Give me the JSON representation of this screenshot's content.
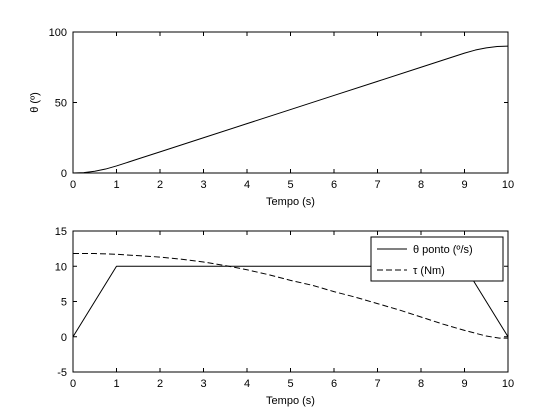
{
  "chart_data": [
    {
      "type": "line",
      "title": "",
      "xlabel": "Tempo (s)",
      "ylabel": "θ (º)",
      "xlim": [
        0,
        10
      ],
      "ylim": [
        0,
        100
      ],
      "xticks": [
        0,
        1,
        2,
        3,
        4,
        5,
        6,
        7,
        8,
        9,
        10
      ],
      "yticks": [
        0,
        50,
        100
      ],
      "grid": false,
      "series": [
        {
          "color": "#000000",
          "style": "solid",
          "x": [
            0,
            0.25,
            0.5,
            0.75,
            1,
            1.5,
            2,
            3,
            4,
            5,
            6,
            7,
            8,
            9,
            9.25,
            9.5,
            9.75,
            10
          ],
          "y": [
            0,
            0.3,
            1.25,
            2.8,
            5,
            10,
            15,
            25,
            35,
            45,
            55,
            65,
            75,
            85,
            87.2,
            88.75,
            89.7,
            90
          ]
        }
      ]
    },
    {
      "type": "line",
      "title": "",
      "xlabel": "Tempo (s)",
      "ylabel": "",
      "xlim": [
        0,
        10
      ],
      "ylim": [
        -5,
        15
      ],
      "xticks": [
        0,
        1,
        2,
        3,
        4,
        5,
        6,
        7,
        8,
        9,
        10
      ],
      "yticks": [
        -5,
        0,
        5,
        10,
        15
      ],
      "grid": false,
      "legend": "top-right",
      "series": [
        {
          "name": "θ ponto (º/s)",
          "color": "#000000",
          "style": "solid",
          "x": [
            0,
            1,
            9,
            10
          ],
          "y": [
            0,
            10,
            10,
            0
          ]
        },
        {
          "name": "τ (Nm)",
          "color": "#000000",
          "style": "dashed",
          "x": [
            0,
            0.5,
            1,
            1.5,
            2,
            2.5,
            3,
            3.5,
            4,
            4.5,
            5,
            5.5,
            6,
            6.5,
            7,
            7.5,
            8,
            8.5,
            9,
            9.5,
            9.8,
            10
          ],
          "y": [
            11.8,
            11.8,
            11.7,
            11.5,
            11.3,
            11.0,
            10.6,
            10.1,
            9.5,
            8.8,
            8.0,
            7.3,
            6.4,
            5.6,
            4.7,
            3.8,
            2.8,
            1.8,
            0.9,
            0.1,
            -0.2,
            -0.2
          ]
        }
      ]
    }
  ]
}
